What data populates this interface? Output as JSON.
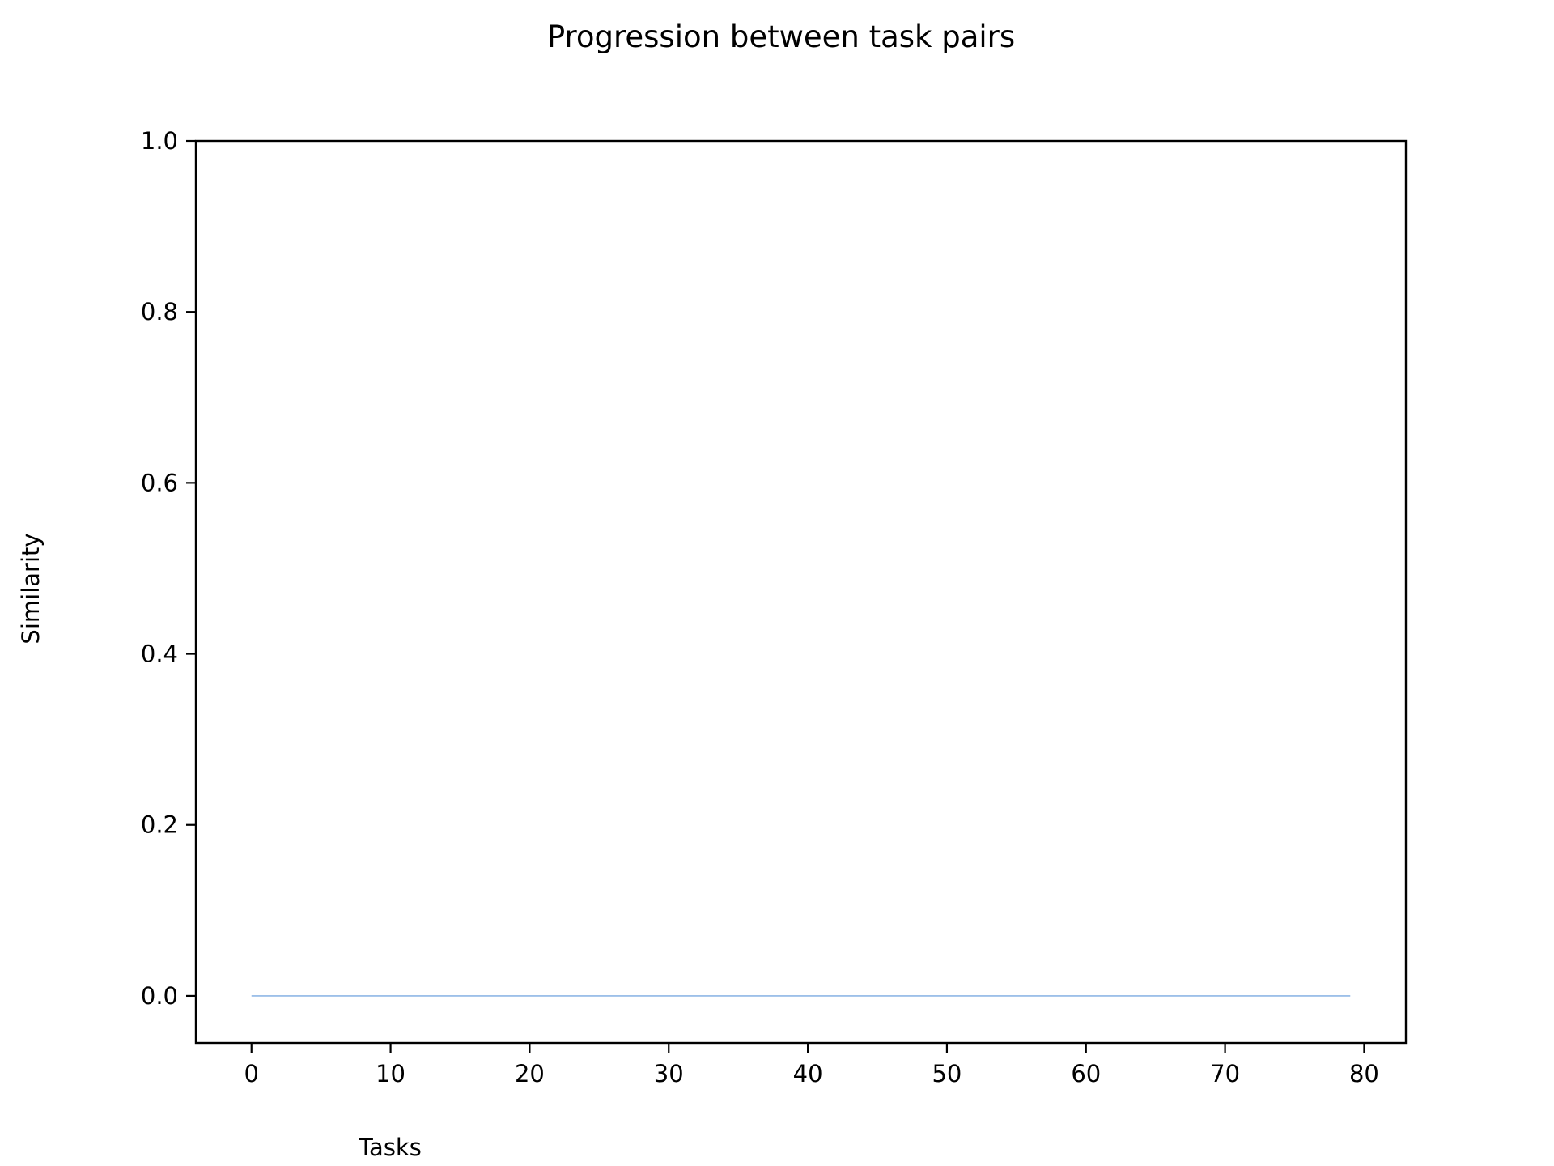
{
  "chart_data": {
    "type": "line",
    "title": "Progression between task pairs",
    "xlabel": "Tasks",
    "ylabel": "Similarity",
    "xlim": [
      -4,
      83
    ],
    "ylim": [
      -0.055,
      1.0
    ],
    "x_ticks": [
      0,
      10,
      20,
      30,
      40,
      50,
      60,
      70,
      80
    ],
    "y_ticks": [
      0.0,
      0.2,
      0.4,
      0.6,
      0.8,
      1.0
    ],
    "y_tick_labels": [
      "0.0",
      "0.2",
      "0.4",
      "0.6",
      "0.8",
      "1.0"
    ],
    "grid": false,
    "series": [
      {
        "color": "#8fb7e6",
        "x": [
          0,
          79
        ],
        "y": [
          0.0,
          0.0
        ]
      }
    ]
  }
}
